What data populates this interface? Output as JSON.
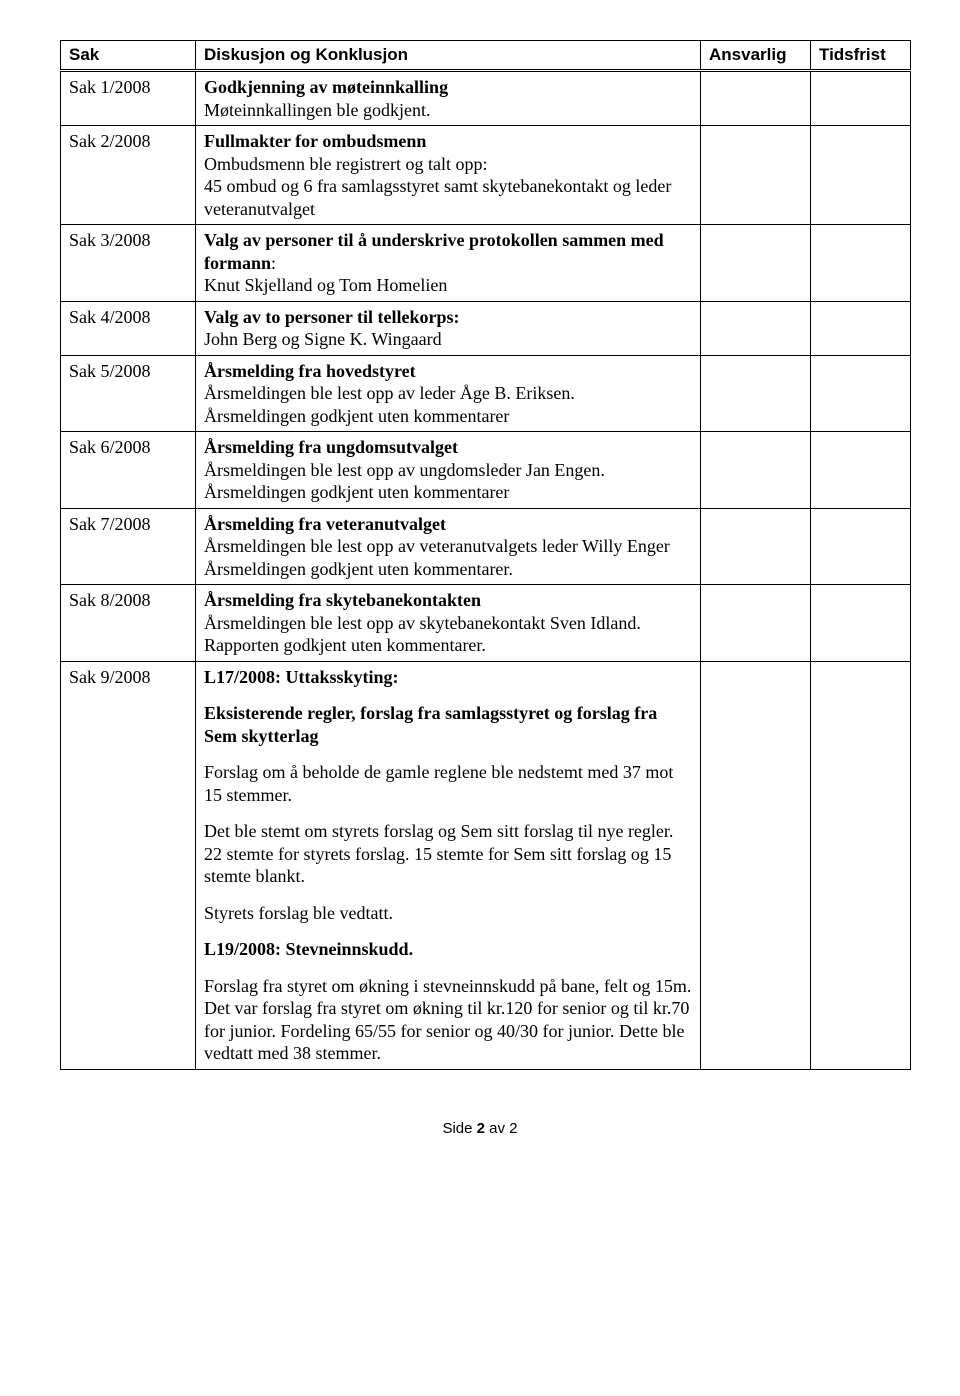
{
  "header": {
    "col1": "Sak",
    "col2": "Diskusjon og Konklusjon",
    "col3": "Ansvarlig",
    "col4": "Tidsfrist"
  },
  "rows": [
    {
      "sak": "Sak 1/2008",
      "title": "Godkjenning av møteinnkalling",
      "body": "Møteinnkallingen ble godkjent."
    },
    {
      "sak": "Sak 2/2008",
      "title": "Fullmakter for ombudsmenn",
      "body": "Ombudsmenn ble registrert og talt opp:\n45 ombud og 6 fra samlagsstyret samt skytebanekontakt og leder veteranutvalget"
    },
    {
      "sak": "Sak 3/2008",
      "title": "Valg av personer til å underskrive protokollen sammen med formann",
      "titleSuffix": ":",
      "body": "Knut Skjelland og Tom Homelien"
    },
    {
      "sak": "Sak 4/2008",
      "title": "Valg av to personer til tellekorps:",
      "body": "John Berg og Signe K. Wingaard"
    },
    {
      "sak": "Sak 5/2008",
      "title": "Årsmelding fra hovedstyret",
      "body": "Årsmeldingen ble lest opp av leder Åge B. Eriksen.\nÅrsmeldingen godkjent uten kommentarer"
    },
    {
      "sak": "Sak 6/2008",
      "title": "Årsmelding fra ungdomsutvalget",
      "body": "Årsmeldingen ble lest opp av ungdomsleder Jan Engen.\nÅrsmeldingen godkjent uten kommentarer"
    },
    {
      "sak": "Sak 7/2008",
      "title": "Årsmelding fra veteranutvalget",
      "body": "Årsmeldingen ble lest opp av veteranutvalgets leder Willy Enger\nÅrsmeldingen godkjent uten kommentarer."
    },
    {
      "sak": "Sak 8/2008",
      "title": "Årsmelding fra skytebanekontakten",
      "body": "Årsmeldingen ble lest opp av skytebanekontakt Sven Idland.\nRapporten godkjent uten kommentarer."
    }
  ],
  "row9": {
    "sak": "Sak 9/2008",
    "p1_bold": "L17/2008: Uttaksskyting:",
    "p2_bold": "Eksisterende regler, forslag fra samlagsstyret og forslag fra Sem skytterlag",
    "p3": "Forslag om å beholde de gamle reglene ble nedstemt med 37 mot 15 stemmer.",
    "p4": "Det ble stemt om styrets forslag og Sem sitt forslag til nye regler. 22 stemte for styrets forslag.  15 stemte for Sem sitt forslag og 15 stemte blankt.",
    "p5": "Styrets forslag ble vedtatt.",
    "p6_bold": "L19/2008: Stevneinnskudd.",
    "p7": "Forslag fra styret om økning i stevneinnskudd på bane, felt og 15m. Det var forslag fra styret om økning til kr.120 for senior og til kr.70 for junior. Fordeling 65/55 for senior og 40/30 for junior. Dette ble vedtatt med 38 stemmer."
  },
  "footer": {
    "prefix": "Side ",
    "current": "2",
    "sep": " av ",
    "total": "2"
  }
}
